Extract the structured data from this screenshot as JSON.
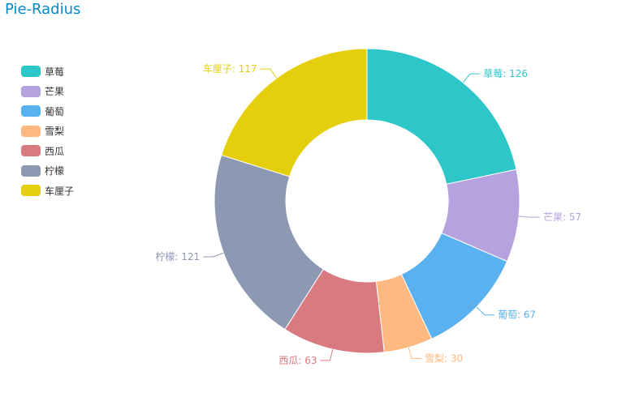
{
  "chart_data": {
    "type": "pie",
    "variant": "donut",
    "title": "Pie-Radius",
    "categories": [
      "草莓",
      "芒果",
      "葡萄",
      "雪梨",
      "西瓜",
      "柠檬",
      "车厘子"
    ],
    "values": [
      126,
      57,
      67,
      30,
      63,
      121,
      117
    ],
    "colors": [
      "#2ec7c9",
      "#b6a2de",
      "#5ab1ef",
      "#ffb980",
      "#d87a80",
      "#8d98b3",
      "#e5cf0d"
    ],
    "legend_position": "left",
    "data_labels": "name: value"
  }
}
